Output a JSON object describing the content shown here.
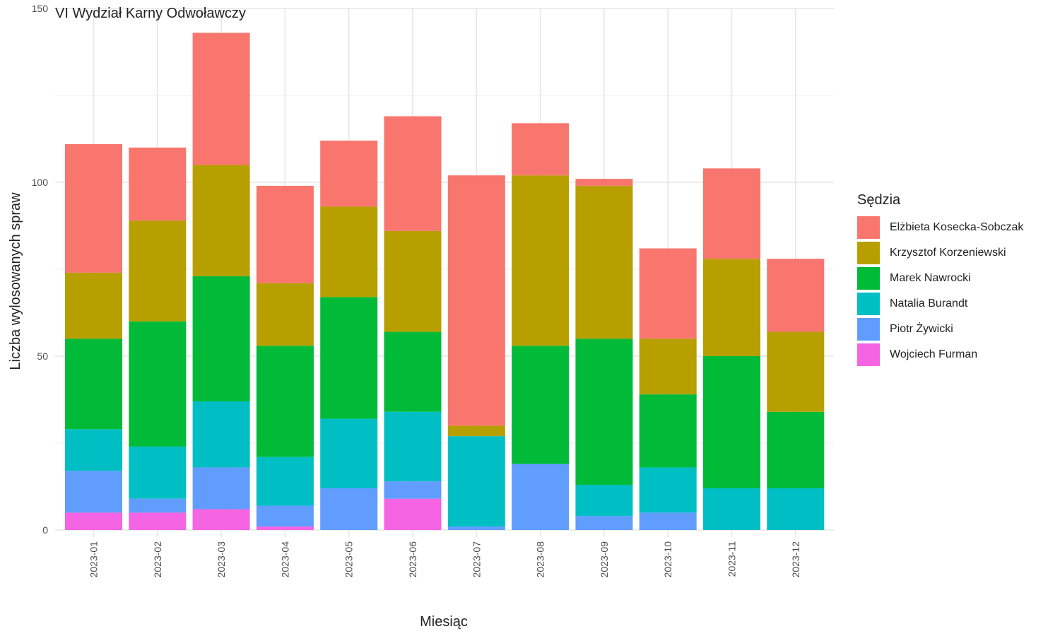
{
  "chart_data": {
    "type": "bar",
    "stacked": true,
    "title": "VI Wydział Karny Odwoławczy",
    "xlabel": "Miesiąc",
    "ylabel": "Liczba wylosowanych spraw",
    "ylim": [
      0,
      150
    ],
    "yticks": [
      0,
      50,
      100,
      150
    ],
    "grid": true,
    "legend_title": "Sędzia",
    "legend_position": "right",
    "categories": [
      "2023-01",
      "2023-02",
      "2023-03",
      "2023-04",
      "2023-05",
      "2023-06",
      "2023-07",
      "2023-08",
      "2023-09",
      "2023-10",
      "2023-11",
      "2023-12"
    ],
    "series": [
      {
        "name": "Wojciech Furman",
        "color": "#F564E3",
        "values": [
          5,
          5,
          6,
          1,
          0,
          9,
          0,
          0,
          0,
          0,
          0,
          0
        ]
      },
      {
        "name": "Piotr Żywicki",
        "color": "#619CFF",
        "values": [
          12,
          4,
          12,
          6,
          12,
          5,
          1,
          19,
          4,
          5,
          0,
          0
        ]
      },
      {
        "name": "Natalia Burandt",
        "color": "#00BFC4",
        "values": [
          12,
          15,
          19,
          14,
          20,
          20,
          26,
          0,
          9,
          13,
          12,
          12
        ]
      },
      {
        "name": "Marek Nawrocki",
        "color": "#00BA38",
        "values": [
          26,
          36,
          36,
          32,
          35,
          23,
          0,
          34,
          42,
          21,
          38,
          22
        ]
      },
      {
        "name": "Krzysztof Korzeniewski",
        "color": "#B79F00",
        "values": [
          19,
          29,
          32,
          18,
          26,
          29,
          3,
          49,
          44,
          16,
          28,
          23
        ]
      },
      {
        "name": "Elżbieta Kosecka-Sobczak",
        "color": "#F8766D",
        "values": [
          37,
          21,
          38,
          28,
          19,
          33,
          72,
          15,
          2,
          26,
          26,
          21
        ]
      }
    ]
  }
}
